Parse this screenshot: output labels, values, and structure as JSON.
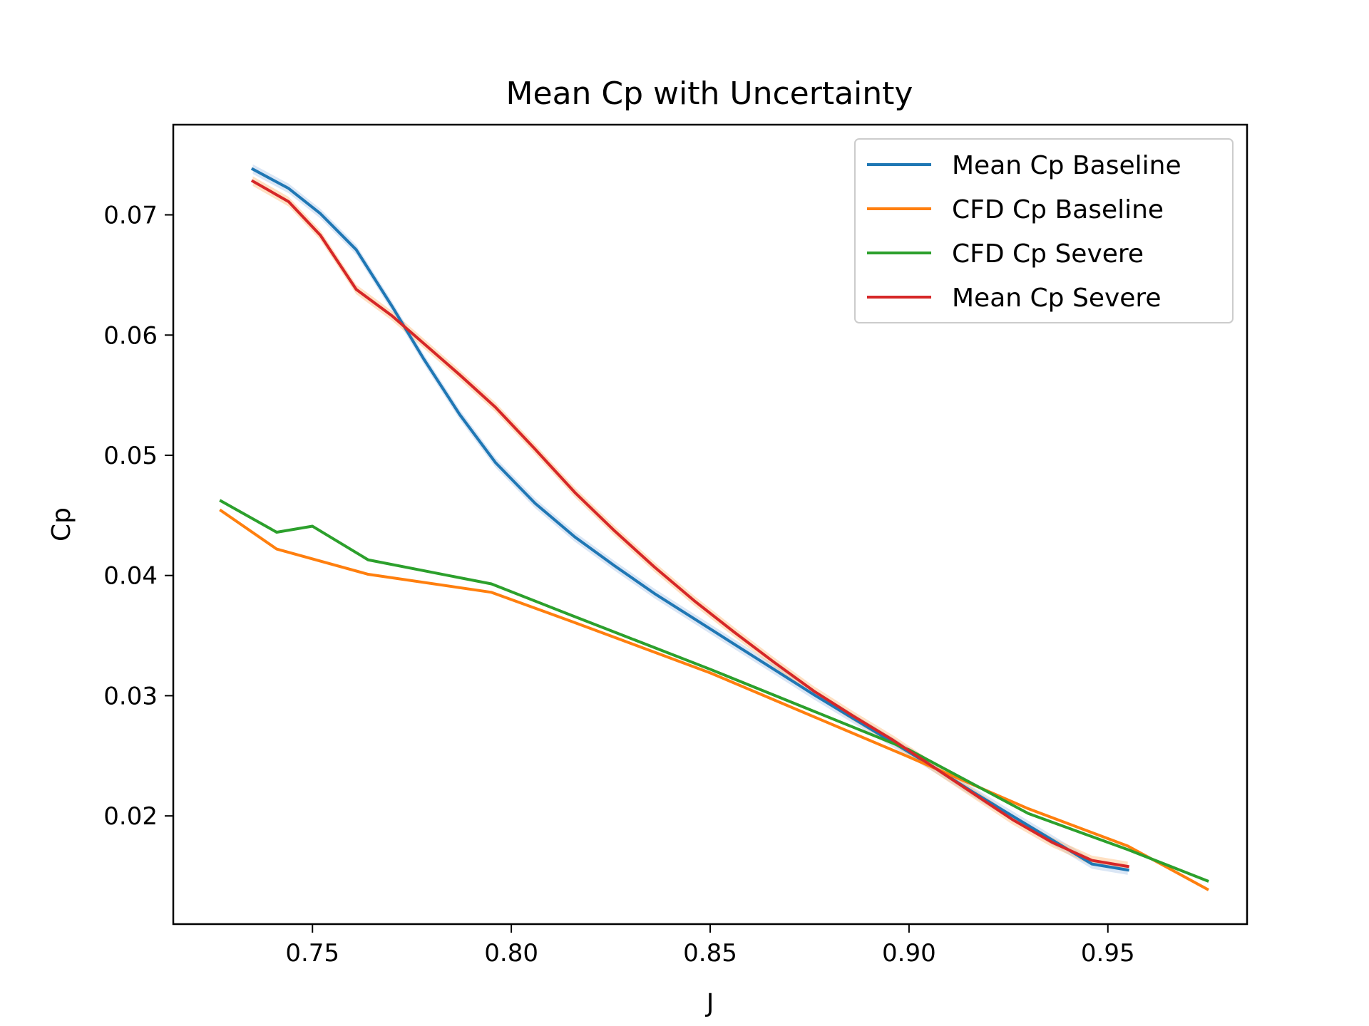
{
  "chart_data": {
    "type": "line",
    "title": "Mean Cp with Uncertainty",
    "xlabel": "J",
    "ylabel": "Cp",
    "xlim": [
      0.715,
      0.985
    ],
    "ylim": [
      0.011,
      0.0775
    ],
    "xticks": [
      0.75,
      0.8,
      0.85,
      0.9,
      0.95
    ],
    "xtick_labels": [
      "0.75",
      "0.80",
      "0.85",
      "0.90",
      "0.95"
    ],
    "yticks": [
      0.02,
      0.03,
      0.04,
      0.05,
      0.06,
      0.07
    ],
    "ytick_labels": [
      "0.02",
      "0.03",
      "0.04",
      "0.05",
      "0.06",
      "0.07"
    ],
    "grid": false,
    "legend_position": "top-right",
    "series": [
      {
        "name": "Mean Cp Baseline",
        "color": "#1f77b4",
        "band_color": "#aec7e8",
        "band_halfwidth": 0.0004,
        "x": [
          0.735,
          0.744,
          0.752,
          0.761,
          0.77,
          0.778,
          0.787,
          0.796,
          0.806,
          0.816,
          0.826,
          0.836,
          0.846,
          0.856,
          0.866,
          0.876,
          0.886,
          0.896,
          0.906,
          0.916,
          0.926,
          0.936,
          0.946,
          0.955
        ],
        "y": [
          0.0738,
          0.0722,
          0.0701,
          0.0671,
          0.0624,
          0.058,
          0.0534,
          0.0494,
          0.046,
          0.0432,
          0.0408,
          0.0385,
          0.0364,
          0.0343,
          0.0322,
          0.0301,
          0.0281,
          0.0261,
          0.0241,
          0.022,
          0.02,
          0.018,
          0.016,
          0.0155
        ]
      },
      {
        "name": "CFD Cp Baseline",
        "color": "#ff7f0e",
        "x": [
          0.727,
          0.741,
          0.764,
          0.795,
          0.815,
          0.85,
          0.9,
          0.93,
          0.955,
          0.975
        ],
        "y": [
          0.0454,
          0.0422,
          0.0401,
          0.0386,
          0.0362,
          0.0319,
          0.0249,
          0.0206,
          0.0175,
          0.0139
        ]
      },
      {
        "name": "CFD Cp Severe",
        "color": "#2ca02c",
        "x": [
          0.727,
          0.741,
          0.75,
          0.764,
          0.795,
          0.815,
          0.85,
          0.9,
          0.93,
          0.955,
          0.975
        ],
        "y": [
          0.0462,
          0.0436,
          0.0441,
          0.0413,
          0.0393,
          0.0367,
          0.0322,
          0.0255,
          0.0202,
          0.0172,
          0.0146
        ]
      },
      {
        "name": "Mean Cp Severe",
        "color": "#d62728",
        "band_color": "#ffbb78",
        "band_halfwidth": 0.0004,
        "x": [
          0.735,
          0.744,
          0.752,
          0.761,
          0.77,
          0.778,
          0.787,
          0.796,
          0.806,
          0.816,
          0.826,
          0.836,
          0.846,
          0.856,
          0.866,
          0.876,
          0.886,
          0.896,
          0.906,
          0.916,
          0.926,
          0.936,
          0.946,
          0.955
        ],
        "y": [
          0.0728,
          0.0711,
          0.0683,
          0.0638,
          0.0616,
          0.0593,
          0.0567,
          0.054,
          0.0505,
          0.0469,
          0.0437,
          0.0407,
          0.0379,
          0.0353,
          0.0328,
          0.0304,
          0.0283,
          0.0263,
          0.0241,
          0.0219,
          0.0197,
          0.0178,
          0.0163,
          0.0158
        ]
      }
    ]
  }
}
